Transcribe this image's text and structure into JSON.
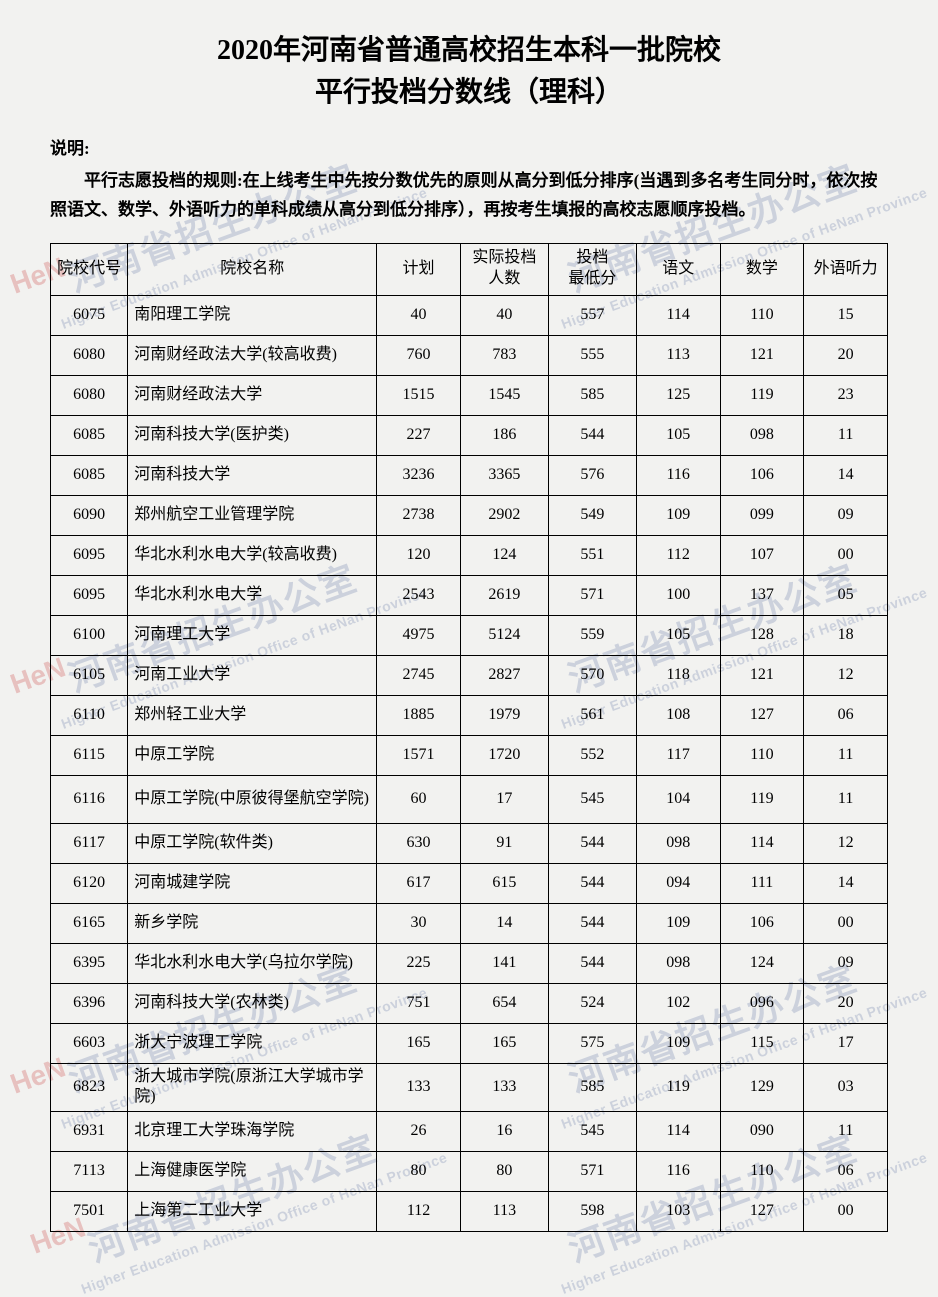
{
  "title_line1": "2020年河南省普通高校招生本科一批院校",
  "title_line2": "平行投档分数线（理科）",
  "intro_label": "说明:",
  "intro_text": "平行志愿投档的规则:在上线考生中先按分数优先的原则从高分到低分排序(当遇到多名考生同分时，依次按照语文、数学、外语听力的单科成绩从高分到低分排序），再按考生填报的高校志愿顺序投档。",
  "columns": [
    "院校代号",
    "院校名称",
    "计划",
    "实际投档\n人数",
    "投档\n最低分",
    "语文",
    "数学",
    "外语听力"
  ],
  "rows": [
    [
      "6075",
      "南阳理工学院",
      "40",
      "40",
      "557",
      "114",
      "110",
      "15"
    ],
    [
      "6080",
      "河南财经政法大学(较高收费)",
      "760",
      "783",
      "555",
      "113",
      "121",
      "20"
    ],
    [
      "6080",
      "河南财经政法大学",
      "1515",
      "1545",
      "585",
      "125",
      "119",
      "23"
    ],
    [
      "6085",
      "河南科技大学(医护类)",
      "227",
      "186",
      "544",
      "105",
      "098",
      "11"
    ],
    [
      "6085",
      "河南科技大学",
      "3236",
      "3365",
      "576",
      "116",
      "106",
      "14"
    ],
    [
      "6090",
      "郑州航空工业管理学院",
      "2738",
      "2902",
      "549",
      "109",
      "099",
      "09"
    ],
    [
      "6095",
      "华北水利水电大学(较高收费)",
      "120",
      "124",
      "551",
      "112",
      "107",
      "00"
    ],
    [
      "6095",
      "华北水利水电大学",
      "2543",
      "2619",
      "571",
      "100",
      "137",
      "05"
    ],
    [
      "6100",
      "河南理工大学",
      "4975",
      "5124",
      "559",
      "105",
      "128",
      "18"
    ],
    [
      "6105",
      "河南工业大学",
      "2745",
      "2827",
      "570",
      "118",
      "121",
      "12"
    ],
    [
      "6110",
      "郑州轻工业大学",
      "1885",
      "1979",
      "561",
      "108",
      "127",
      "06"
    ],
    [
      "6115",
      "中原工学院",
      "1571",
      "1720",
      "552",
      "117",
      "110",
      "11"
    ],
    [
      "6116",
      "中原工学院(中原彼得堡航空学院)",
      "60",
      "17",
      "545",
      "104",
      "119",
      "11"
    ],
    [
      "6117",
      "中原工学院(软件类)",
      "630",
      "91",
      "544",
      "098",
      "114",
      "12"
    ],
    [
      "6120",
      "河南城建学院",
      "617",
      "615",
      "544",
      "094",
      "111",
      "14"
    ],
    [
      "6165",
      "新乡学院",
      "30",
      "14",
      "544",
      "109",
      "106",
      "00"
    ],
    [
      "6395",
      "华北水利水电大学(乌拉尔学院)",
      "225",
      "141",
      "544",
      "098",
      "124",
      "09"
    ],
    [
      "6396",
      "河南科技大学(农林类)",
      "751",
      "654",
      "524",
      "102",
      "096",
      "20"
    ],
    [
      "6603",
      "浙大宁波理工学院",
      "165",
      "165",
      "575",
      "109",
      "115",
      "17"
    ],
    [
      "6823",
      "浙大城市学院(原浙江大学城市学院)",
      "133",
      "133",
      "585",
      "119",
      "129",
      "03"
    ],
    [
      "6931",
      "北京理工大学珠海学院",
      "26",
      "16",
      "545",
      "114",
      "090",
      "11"
    ],
    [
      "7113",
      "上海健康医学院",
      "80",
      "80",
      "571",
      "116",
      "110",
      "06"
    ],
    [
      "7501",
      "上海第二工业大学",
      "112",
      "113",
      "598",
      "103",
      "127",
      "00"
    ]
  ],
  "tall_rows": [
    12,
    19
  ],
  "watermark_cn": "河南省招生办公室",
  "watermark_en": "Higher Education Admission Office of HeNan Province",
  "watermark_logo": "HeN",
  "colors": {
    "background": "#f2f2f0",
    "text": "#000000",
    "border": "#000000",
    "watermark_blue": "rgba(90,110,160,0.55)",
    "watermark_red": "rgba(200,60,60,0.6)"
  }
}
